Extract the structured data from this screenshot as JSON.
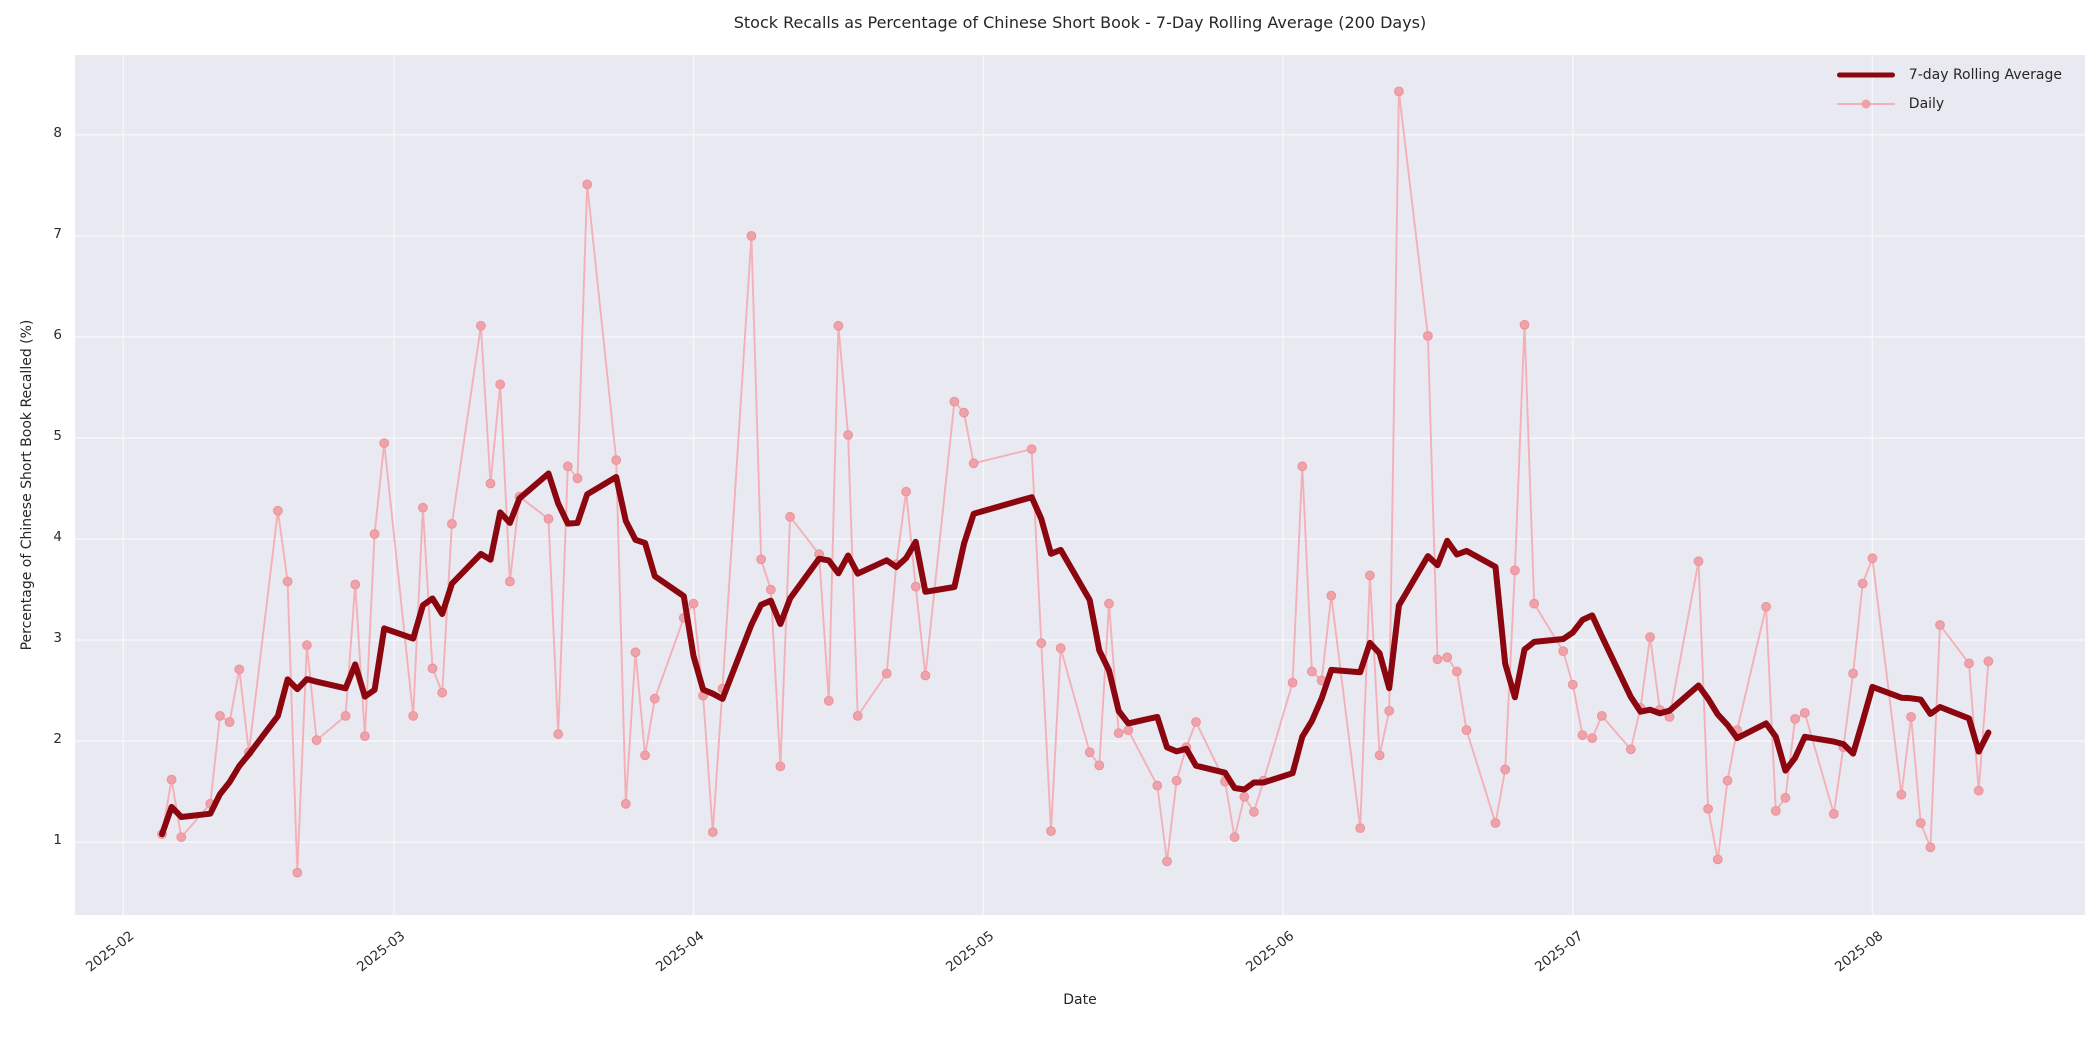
{
  "title": "Stock Recalls as Percentage of Chinese Short Book - 7-Day Rolling Average (200 Days)",
  "axes": {
    "xlabel": "Date",
    "ylabel": "Percentage of Chinese Short Book Recalled (%)"
  },
  "legend": {
    "rolling_label": "7-day Rolling Average",
    "daily_label": "Daily",
    "position": "upper right"
  },
  "colors": {
    "rolling_line": "#8b060e",
    "daily_line": "#f3b1b7",
    "marker_fill": "#efa2a9",
    "marker_edge": "#ea939b",
    "plot_bg": "#e9e9f1",
    "grid": "#f7f7fb",
    "figure_bg": "#ffffff",
    "text": "#262626"
  },
  "chart_data": {
    "type": "line",
    "title": "Stock Recalls as Percentage of Chinese Short Book - 7-Day Rolling Average (200 Days)",
    "xlabel": "Date",
    "ylabel": "Percentage of Chinese Short Book Recalled (%)",
    "grid": true,
    "legend_position": "upper right",
    "x_ticks": [
      {
        "label": "2025-02",
        "date": "2025-02-01"
      },
      {
        "label": "2025-03",
        "date": "2025-03-01"
      },
      {
        "label": "2025-04",
        "date": "2025-04-01"
      },
      {
        "label": "2025-05",
        "date": "2025-05-01"
      },
      {
        "label": "2025-06",
        "date": "2025-06-01"
      },
      {
        "label": "2025-07",
        "date": "2025-07-01"
      },
      {
        "label": "2025-08",
        "date": "2025-08-01"
      }
    ],
    "y_ticks": [
      1,
      2,
      3,
      4,
      5,
      6,
      7,
      8
    ],
    "ylim": [
      0.28,
      8.79
    ],
    "xlim_dates": [
      "2025-01-27",
      "2025-08-23"
    ],
    "rolling": {
      "name": "7-day Rolling Average",
      "window": 7,
      "min_periods": 1,
      "derived_from": "daily"
    },
    "daily": {
      "name": "Daily",
      "dates": [
        "2025-02-05",
        "2025-02-06",
        "2025-02-07",
        "2025-02-10",
        "2025-02-11",
        "2025-02-12",
        "2025-02-13",
        "2025-02-14",
        "2025-02-17",
        "2025-02-18",
        "2025-02-19",
        "2025-02-20",
        "2025-02-21",
        "2025-02-24",
        "2025-02-25",
        "2025-02-26",
        "2025-02-27",
        "2025-02-28",
        "2025-03-03",
        "2025-03-04",
        "2025-03-05",
        "2025-03-06",
        "2025-03-07",
        "2025-03-10",
        "2025-03-11",
        "2025-03-12",
        "2025-03-13",
        "2025-03-14",
        "2025-03-17",
        "2025-03-18",
        "2025-03-19",
        "2025-03-20",
        "2025-03-21",
        "2025-03-24",
        "2025-03-25",
        "2025-03-26",
        "2025-03-27",
        "2025-03-28",
        "2025-03-31",
        "2025-04-01",
        "2025-04-02",
        "2025-04-03",
        "2025-04-04",
        "2025-04-07",
        "2025-04-08",
        "2025-04-09",
        "2025-04-10",
        "2025-04-11",
        "2025-04-14",
        "2025-04-15",
        "2025-04-16",
        "2025-04-17",
        "2025-04-18",
        "2025-04-21",
        "2025-04-22",
        "2025-04-23",
        "2025-04-24",
        "2025-04-25",
        "2025-04-28",
        "2025-04-29",
        "2025-04-30",
        "2025-05-06",
        "2025-05-07",
        "2025-05-08",
        "2025-05-09",
        "2025-05-12",
        "2025-05-13",
        "2025-05-14",
        "2025-05-15",
        "2025-05-16",
        "2025-05-19",
        "2025-05-20",
        "2025-05-21",
        "2025-05-22",
        "2025-05-23",
        "2025-05-26",
        "2025-05-27",
        "2025-05-28",
        "2025-05-29",
        "2025-05-30",
        "2025-06-02",
        "2025-06-03",
        "2025-06-04",
        "2025-06-05",
        "2025-06-06",
        "2025-06-09",
        "2025-06-10",
        "2025-06-11",
        "2025-06-12",
        "2025-06-13",
        "2025-06-16",
        "2025-06-17",
        "2025-06-18",
        "2025-06-19",
        "2025-06-20",
        "2025-06-23",
        "2025-06-24",
        "2025-06-25",
        "2025-06-26",
        "2025-06-27",
        "2025-06-30",
        "2025-07-01",
        "2025-07-02",
        "2025-07-03",
        "2025-07-04",
        "2025-07-07",
        "2025-07-08",
        "2025-07-09",
        "2025-07-10",
        "2025-07-11",
        "2025-07-14",
        "2025-07-15",
        "2025-07-16",
        "2025-07-17",
        "2025-07-18",
        "2025-07-21",
        "2025-07-22",
        "2025-07-23",
        "2025-07-24",
        "2025-07-25",
        "2025-07-28",
        "2025-07-29",
        "2025-07-30",
        "2025-07-31",
        "2025-08-01",
        "2025-08-04",
        "2025-08-05",
        "2025-08-06",
        "2025-08-07",
        "2025-08-08",
        "2025-08-11",
        "2025-08-12",
        "2025-08-13"
      ],
      "values": [
        1.08,
        1.62,
        1.05,
        1.38,
        2.25,
        2.19,
        2.71,
        1.89,
        4.28,
        3.58,
        0.7,
        2.95,
        2.01,
        2.25,
        3.55,
        2.05,
        4.05,
        4.95,
        2.25,
        4.31,
        2.72,
        2.48,
        4.15,
        6.11,
        4.55,
        5.53,
        3.58,
        4.42,
        4.2,
        2.07,
        4.72,
        4.6,
        7.51,
        4.78,
        1.38,
        2.88,
        1.86,
        2.42,
        3.22,
        3.36,
        2.45,
        1.1,
        2.52,
        7.0,
        3.8,
        3.5,
        1.75,
        4.22,
        3.85,
        2.4,
        6.11,
        5.03,
        2.25,
        2.67,
        3.75,
        4.47,
        3.53,
        2.65,
        5.36,
        5.25,
        4.75,
        4.89,
        2.97,
        1.11,
        2.92,
        1.89,
        1.76,
        3.36,
        2.08,
        2.11,
        1.56,
        0.81,
        1.61,
        1.94,
        2.19,
        1.6,
        1.05,
        1.45,
        1.3,
        1.61,
        2.58,
        4.72,
        2.69,
        2.6,
        3.44,
        1.14,
        3.64,
        1.86,
        2.3,
        8.43,
        6.01,
        2.81,
        2.83,
        2.69,
        2.11,
        1.19,
        1.72,
        3.69,
        6.12,
        3.36,
        2.89,
        2.56,
        2.06,
        2.03,
        2.25,
        1.92,
        2.33,
        3.03,
        2.31,
        2.24,
        3.78,
        1.33,
        0.83,
        1.61,
        2.11,
        3.33,
        1.31,
        1.44,
        2.22,
        2.28,
        1.28,
        1.94,
        2.67,
        3.56,
        3.81,
        1.47,
        2.24,
        1.19,
        0.95,
        3.15,
        2.77,
        1.51,
        2.79
      ]
    }
  }
}
